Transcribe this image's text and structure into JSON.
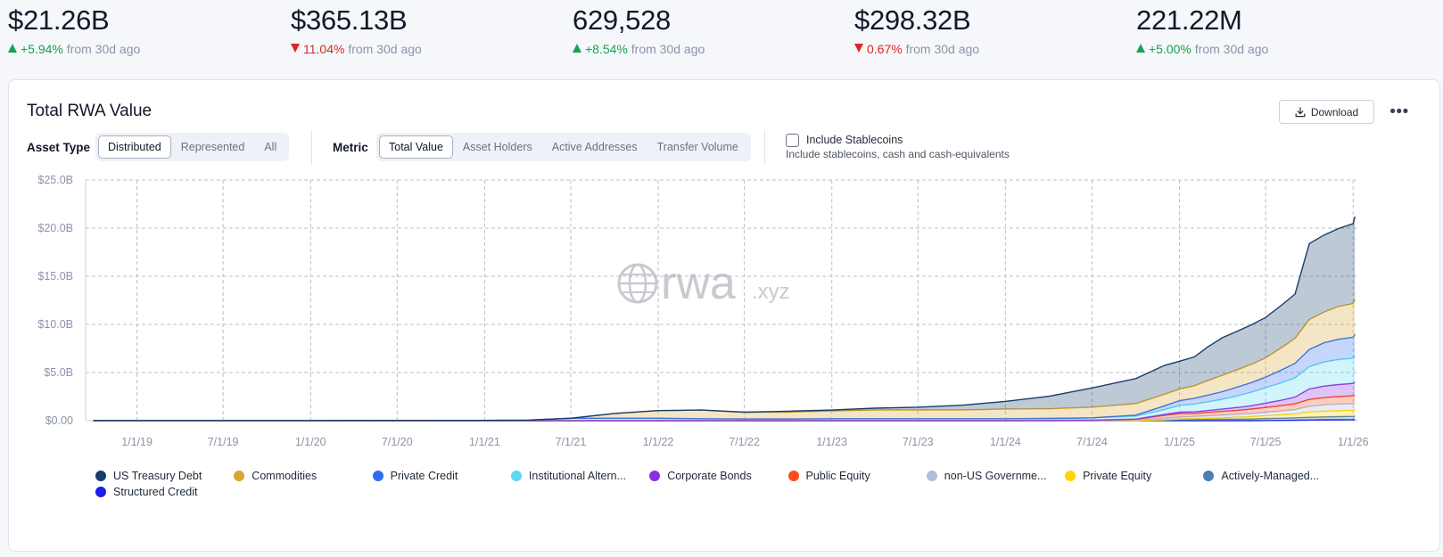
{
  "stats": [
    {
      "value": "$21.26B",
      "direction": "up",
      "pct": "+5.94%",
      "suffix": "from 30d ago"
    },
    {
      "value": "$365.13B",
      "direction": "down",
      "pct": "11.04%",
      "suffix": "from 30d ago"
    },
    {
      "value": "629,528",
      "direction": "up",
      "pct": "+8.54%",
      "suffix": "from 30d ago"
    },
    {
      "value": "$298.32B",
      "direction": "down",
      "pct": "0.67%",
      "suffix": "from 30d ago"
    },
    {
      "value": "221.22M",
      "direction": "up",
      "pct": "+5.00%",
      "suffix": "from 30d ago"
    }
  ],
  "card": {
    "title": "Total RWA Value",
    "download_label": "Download",
    "more_label": "•••"
  },
  "controls": {
    "asset_type": {
      "label": "Asset Type",
      "options": [
        "Distributed",
        "Represented",
        "All"
      ],
      "selected": "Distributed"
    },
    "metric": {
      "label": "Metric",
      "options": [
        "Total Value",
        "Asset Holders",
        "Active Addresses",
        "Transfer Volume"
      ],
      "selected": "Total Value"
    },
    "stablecoins": {
      "label": "Include Stablecoins",
      "description": "Include stablecoins, cash and cash-equivalents",
      "checked": false
    }
  },
  "watermark": {
    "brand": "rwa",
    "suffix": ".xyz"
  },
  "chart_data": {
    "type": "area",
    "stacked": true,
    "title": "",
    "xlabel": "",
    "ylabel": "",
    "x_ticks": [
      "1/1/19",
      "7/1/19",
      "1/1/20",
      "7/1/20",
      "1/1/21",
      "7/1/21",
      "1/1/22",
      "7/1/22",
      "1/1/23",
      "7/1/23",
      "1/1/24",
      "7/1/24",
      "1/1/25",
      "7/1/25",
      "1/1/26"
    ],
    "y_ticks": [
      "$0.00",
      "$5.0B",
      "$10.0B",
      "$15.0B",
      "$20.0B",
      "$25.0B"
    ],
    "ylim": [
      0,
      25
    ],
    "y_unit": "billions USD",
    "grid": true,
    "legend_position": "bottom",
    "dates": [
      "2018-10-01",
      "2019-01-01",
      "2019-07-01",
      "2020-01-01",
      "2020-07-01",
      "2021-01-01",
      "2021-04-01",
      "2021-07-01",
      "2021-10-01",
      "2022-01-01",
      "2022-04-01",
      "2022-07-01",
      "2022-10-01",
      "2023-01-01",
      "2023-04-01",
      "2023-07-01",
      "2023-10-01",
      "2024-01-01",
      "2024-04-01",
      "2024-07-01",
      "2024-10-01",
      "2024-12-01",
      "2025-01-01",
      "2025-02-01",
      "2025-03-01",
      "2025-04-01",
      "2025-05-01",
      "2025-06-01",
      "2025-07-01",
      "2025-08-01",
      "2025-09-01",
      "2025-10-01",
      "2025-11-01",
      "2025-12-01",
      "2026-01-01",
      "2026-01-05"
    ],
    "series": [
      {
        "name": "Structured Credit",
        "color": "#1d1ee8",
        "values": [
          0,
          0,
          0,
          0,
          0,
          0,
          0,
          0,
          0,
          0,
          0,
          0,
          0,
          0,
          0,
          0,
          0,
          0,
          0,
          0,
          0,
          0,
          0,
          0,
          0,
          0,
          0,
          0,
          0.02,
          0.03,
          0.05,
          0.07,
          0.09,
          0.1,
          0.11,
          0.12
        ]
      },
      {
        "name": "Actively-Managed...",
        "color": "#4a7fb0",
        "values": [
          0,
          0,
          0,
          0,
          0,
          0,
          0,
          0,
          0,
          0,
          0,
          0,
          0,
          0,
          0,
          0,
          0,
          0,
          0,
          0,
          0.02,
          0.05,
          0.1,
          0.12,
          0.13,
          0.15,
          0.16,
          0.18,
          0.2,
          0.22,
          0.25,
          0.28,
          0.3,
          0.32,
          0.33,
          0.34
        ]
      },
      {
        "name": "Private Equity",
        "color": "#ffd400",
        "values": [
          0,
          0,
          0,
          0,
          0,
          0,
          0,
          0,
          0,
          0,
          0,
          0,
          0,
          0,
          0,
          0,
          0,
          0,
          0,
          0,
          0,
          0.05,
          0.08,
          0.1,
          0.12,
          0.15,
          0.2,
          0.25,
          0.3,
          0.35,
          0.4,
          0.55,
          0.6,
          0.62,
          0.63,
          0.64
        ]
      },
      {
        "name": "non-US Governme...",
        "color": "#aebfdc",
        "values": [
          0,
          0,
          0,
          0,
          0,
          0,
          0,
          0,
          0,
          0,
          0,
          0,
          0,
          0,
          0,
          0,
          0,
          0,
          0.03,
          0.05,
          0.08,
          0.15,
          0.2,
          0.22,
          0.25,
          0.28,
          0.3,
          0.32,
          0.35,
          0.4,
          0.45,
          0.6,
          0.65,
          0.68,
          0.7,
          0.72
        ]
      },
      {
        "name": "Public Equity",
        "color": "#ff4a1c",
        "values": [
          0,
          0,
          0,
          0,
          0,
          0,
          0,
          0,
          0,
          0,
          0,
          0,
          0,
          0,
          0,
          0,
          0,
          0,
          0,
          0,
          0.05,
          0.3,
          0.35,
          0.3,
          0.35,
          0.38,
          0.4,
          0.45,
          0.5,
          0.55,
          0.6,
          0.7,
          0.75,
          0.78,
          0.8,
          0.82
        ]
      },
      {
        "name": "Corporate Bonds",
        "color": "#8b2fe0",
        "values": [
          0,
          0,
          0,
          0,
          0,
          0,
          0,
          0,
          0,
          0,
          0,
          0,
          0,
          0,
          0,
          0,
          0,
          0,
          0,
          0,
          0.02,
          0.1,
          0.15,
          0.18,
          0.2,
          0.25,
          0.3,
          0.35,
          0.45,
          0.55,
          0.7,
          1.1,
          1.2,
          1.25,
          1.3,
          1.35
        ]
      },
      {
        "name": "Institutional Altern...",
        "color": "#5fd6f2",
        "values": [
          0,
          0.01,
          0.01,
          0.01,
          0.02,
          0.03,
          0.05,
          0.25,
          0.25,
          0.25,
          0.2,
          0.18,
          0.18,
          0.2,
          0.2,
          0.2,
          0.2,
          0.2,
          0.2,
          0.25,
          0.3,
          0.5,
          0.7,
          0.8,
          0.9,
          1.0,
          1.2,
          1.4,
          1.6,
          1.8,
          2.0,
          2.3,
          2.5,
          2.6,
          2.6,
          2.7
        ]
      },
      {
        "name": "Private Credit",
        "color": "#2f6bf0",
        "values": [
          0,
          0,
          0,
          0,
          0,
          0,
          0,
          0,
          0,
          0,
          0,
          0,
          0,
          0,
          0,
          0,
          0,
          0,
          0,
          0,
          0.1,
          0.4,
          0.5,
          0.6,
          0.7,
          0.8,
          0.9,
          1.0,
          1.1,
          1.3,
          1.5,
          1.8,
          2.0,
          2.1,
          2.2,
          2.3
        ]
      },
      {
        "name": "Commodities",
        "color": "#d9a62e",
        "values": [
          0,
          0,
          0,
          0,
          0,
          0,
          0,
          0,
          0.5,
          0.8,
          0.9,
          0.7,
          0.7,
          0.8,
          0.9,
          0.9,
          0.9,
          1.0,
          1.0,
          1.1,
          1.2,
          1.2,
          1.2,
          1.3,
          1.5,
          1.7,
          1.8,
          1.9,
          2.0,
          2.3,
          2.6,
          3.1,
          3.2,
          3.4,
          3.5,
          3.6
        ]
      },
      {
        "name": "US Treasury Debt",
        "color": "#163d6b",
        "values": [
          0,
          0,
          0,
          0,
          0,
          0,
          0,
          0,
          0,
          0,
          0,
          0,
          0.1,
          0.1,
          0.2,
          0.3,
          0.5,
          0.8,
          1.3,
          2.0,
          2.6,
          3.0,
          2.9,
          3.0,
          3.5,
          3.9,
          4.0,
          4.1,
          4.2,
          4.4,
          4.6,
          7.9,
          8.0,
          8.1,
          8.3,
          8.6
        ]
      }
    ],
    "legend": [
      {
        "name": "US Treasury Debt",
        "color": "#163d6b"
      },
      {
        "name": "Commodities",
        "color": "#d9a62e"
      },
      {
        "name": "Private Credit",
        "color": "#2f6bf0"
      },
      {
        "name": "Institutional Altern...",
        "color": "#5fd6f2"
      },
      {
        "name": "Corporate Bonds",
        "color": "#8b2fe0"
      },
      {
        "name": "Public Equity",
        "color": "#ff4a1c"
      },
      {
        "name": "non-US Governme...",
        "color": "#aebfdc"
      },
      {
        "name": "Private Equity",
        "color": "#ffd400"
      },
      {
        "name": "Actively-Managed...",
        "color": "#4a7fb0"
      },
      {
        "name": "Structured Credit",
        "color": "#1d1ee8"
      }
    ]
  }
}
